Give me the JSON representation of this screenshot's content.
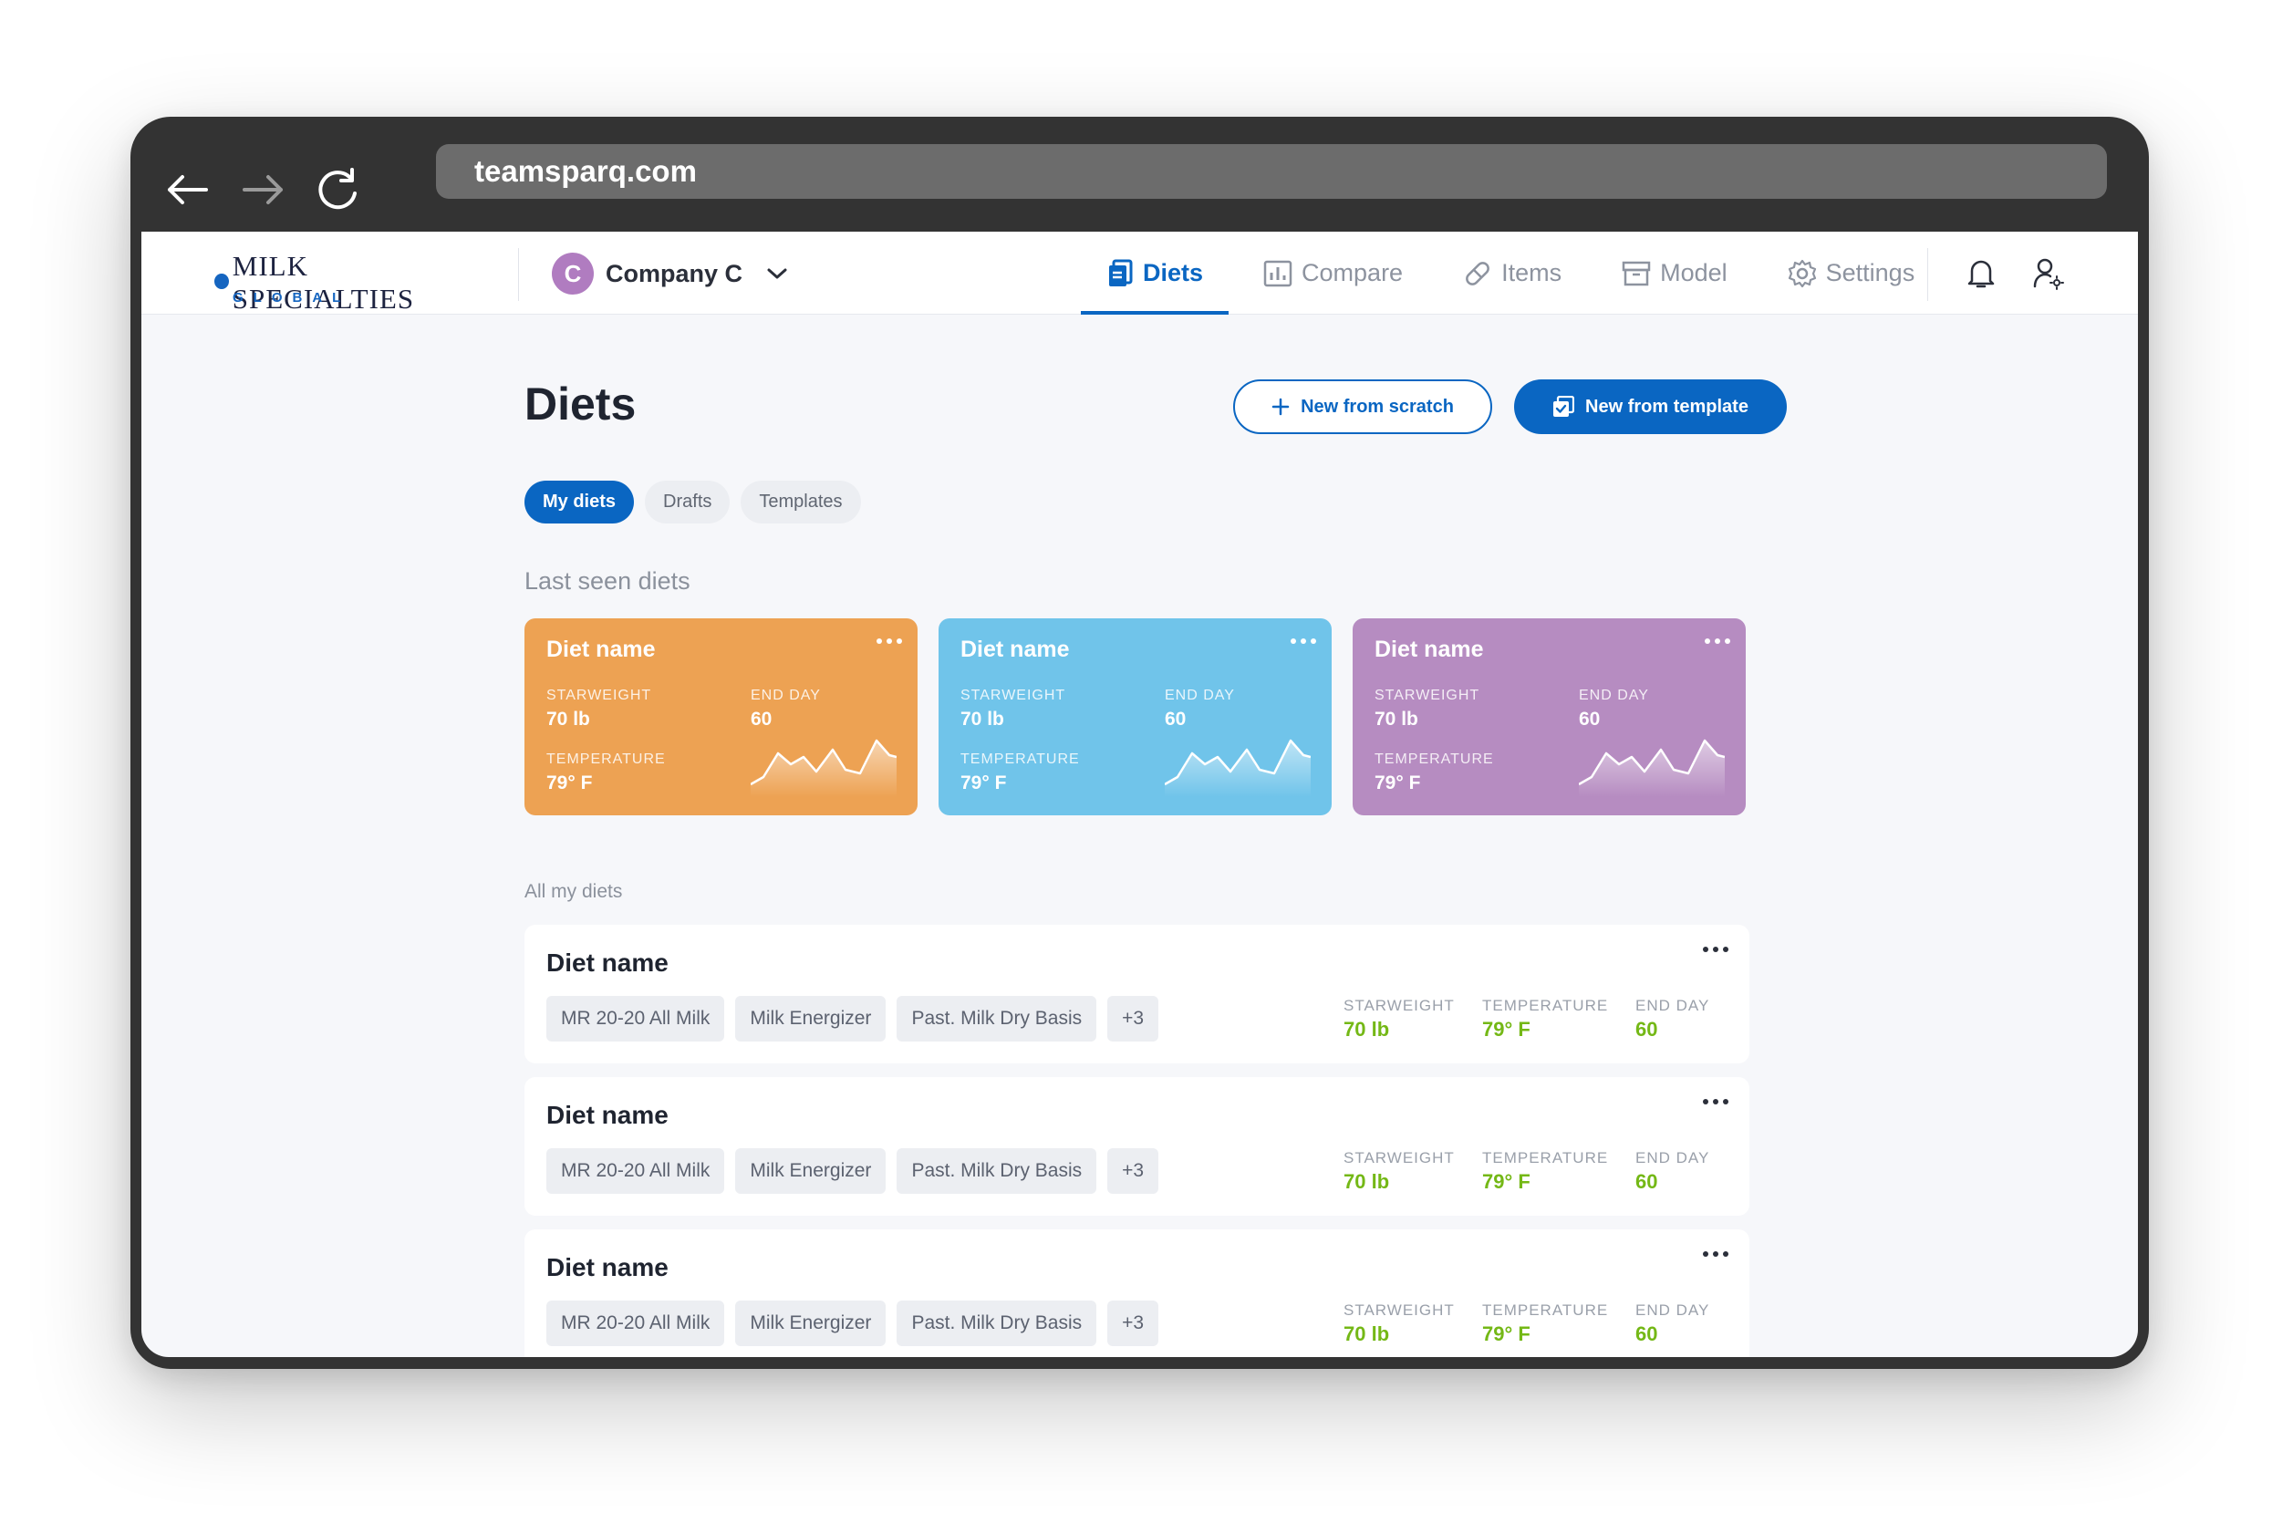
{
  "browser": {
    "url": "teamsparq.com"
  },
  "logo": {
    "main": "MILK SPECIALTIES",
    "sub": "GLOBAL"
  },
  "company": {
    "initial": "C",
    "name": "Company C"
  },
  "nav": [
    {
      "label": "Diets",
      "icon": "diets-icon",
      "active": true
    },
    {
      "label": "Compare",
      "icon": "bar-chart-icon"
    },
    {
      "label": "Items",
      "icon": "pill-icon"
    },
    {
      "label": "Model",
      "icon": "archive-icon"
    },
    {
      "label": "Settings",
      "icon": "gear-icon"
    }
  ],
  "header_icons": [
    "bell-icon",
    "user-settings-icon"
  ],
  "page": {
    "title": "Diets",
    "btn_scratch": "New from scratch",
    "btn_template": "New from template"
  },
  "tabs": [
    {
      "label": "My diets",
      "active": true
    },
    {
      "label": "Drafts"
    },
    {
      "label": "Templates"
    }
  ],
  "last_seen": {
    "title": "Last seen diets",
    "cards": [
      {
        "name": "Diet name",
        "starweight_label": "STARWEIGHT",
        "starweight": "70 lb",
        "endday_label": "END DAY",
        "endday": "60",
        "temp_label": "TEMPERATURE",
        "temp": "79° F",
        "color": "#eda253"
      },
      {
        "name": "Diet name",
        "starweight_label": "STARWEIGHT",
        "starweight": "70 lb",
        "endday_label": "END DAY",
        "endday": "60",
        "temp_label": "TEMPERATURE",
        "temp": "79° F",
        "color": "#70c4ea"
      },
      {
        "name": "Diet name",
        "starweight_label": "STARWEIGHT",
        "starweight": "70 lb",
        "endday_label": "END DAY",
        "endday": "60",
        "temp_label": "TEMPERATURE",
        "temp": "79° F",
        "color": "#b68cc1"
      }
    ]
  },
  "all_diets": {
    "title": "All my diets",
    "rows": [
      {
        "name": "Diet name",
        "chips": [
          "MR 20-20 All Milk",
          "Milk Energizer",
          "Past. Milk Dry Basis",
          "+3"
        ],
        "starweight_label": "STARWEIGHT",
        "starweight": "70 lb",
        "temp_label": "TEMPERATURE",
        "temp": "79° F",
        "endday_label": "END DAY",
        "endday": "60"
      },
      {
        "name": "Diet name",
        "chips": [
          "MR 20-20 All Milk",
          "Milk Energizer",
          "Past. Milk Dry Basis",
          "+3"
        ],
        "starweight_label": "STARWEIGHT",
        "starweight": "70 lb",
        "temp_label": "TEMPERATURE",
        "temp": "79° F",
        "endday_label": "END DAY",
        "endday": "60"
      },
      {
        "name": "Diet name",
        "chips": [
          "MR 20-20 All Milk",
          "Milk Energizer",
          "Past. Milk Dry Basis",
          "+3"
        ],
        "starweight_label": "STARWEIGHT",
        "starweight": "70 lb",
        "temp_label": "TEMPERATURE",
        "temp": "79° F",
        "endday_label": "END DAY",
        "endday": "60"
      }
    ]
  }
}
